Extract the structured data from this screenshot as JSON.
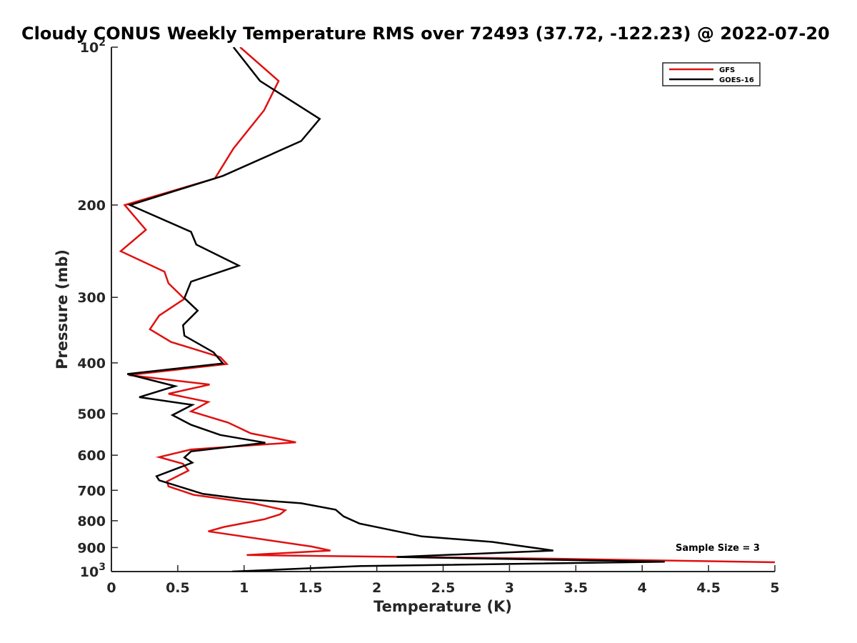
{
  "chart_data": {
    "type": "line",
    "title": "Cloudy CONUS Weekly Temperature RMS over 72493 (37.72, -122.23) @ 2022-07-20",
    "xlabel": "Temperature (K)",
    "ylabel": "Pressure (mb)",
    "xlim": [
      0,
      5
    ],
    "ylim": [
      100,
      1000
    ],
    "y_scale": "log",
    "y_reversed": true,
    "grid": false,
    "legend_position": "top-right",
    "x_ticks": [
      "0",
      "0.5",
      "1",
      "1.5",
      "2",
      "2.5",
      "3",
      "3.5",
      "4",
      "4.5",
      "5"
    ],
    "y_ticks": [
      {
        "value": 100,
        "base": "10",
        "exp": "2"
      },
      {
        "value": 200,
        "label": "200"
      },
      {
        "value": 300,
        "label": "300"
      },
      {
        "value": 400,
        "label": "400"
      },
      {
        "value": 500,
        "label": "500"
      },
      {
        "value": 600,
        "label": "600"
      },
      {
        "value": 700,
        "label": "700"
      },
      {
        "value": 800,
        "label": "800"
      },
      {
        "value": 900,
        "label": "900"
      },
      {
        "value": 1000,
        "base": "10",
        "exp": "3"
      }
    ],
    "annotation": "Sample Size = 3",
    "series": [
      {
        "name": "GFS",
        "color": "#e01010",
        "points": [
          [
            0.97,
            100
          ],
          [
            1.26,
            116
          ],
          [
            1.15,
            132
          ],
          [
            0.92,
            156
          ],
          [
            0.78,
            178
          ],
          [
            0.1,
            200
          ],
          [
            0.26,
            223
          ],
          [
            0.07,
            245
          ],
          [
            0.4,
            268
          ],
          [
            0.43,
            282
          ],
          [
            0.55,
            302
          ],
          [
            0.36,
            325
          ],
          [
            0.29,
            345
          ],
          [
            0.45,
            365
          ],
          [
            0.82,
            390
          ],
          [
            0.87,
            402
          ],
          [
            0.13,
            422
          ],
          [
            0.74,
            440
          ],
          [
            0.43,
            458
          ],
          [
            0.73,
            475
          ],
          [
            0.6,
            495
          ],
          [
            0.88,
            520
          ],
          [
            1.05,
            545
          ],
          [
            1.39,
            567
          ],
          [
            0.6,
            585
          ],
          [
            0.36,
            605
          ],
          [
            0.54,
            623
          ],
          [
            0.58,
            642
          ],
          [
            0.42,
            673
          ],
          [
            0.43,
            688
          ],
          [
            0.62,
            714
          ],
          [
            1.06,
            740
          ],
          [
            1.31,
            764
          ],
          [
            1.27,
            778
          ],
          [
            1.15,
            795
          ],
          [
            0.85,
            822
          ],
          [
            0.73,
            838
          ],
          [
            1.51,
            896
          ],
          [
            1.65,
            912
          ],
          [
            1.02,
            930
          ],
          [
            3.33,
            945
          ],
          [
            5.0,
            960
          ]
        ]
      },
      {
        "name": "GOES-16",
        "color": "#000000",
        "points": [
          [
            0.92,
            100
          ],
          [
            1.12,
            116
          ],
          [
            1.57,
            137
          ],
          [
            1.43,
            151
          ],
          [
            0.84,
            176
          ],
          [
            0.14,
            200
          ],
          [
            0.6,
            225
          ],
          [
            0.64,
            238
          ],
          [
            0.96,
            261
          ],
          [
            0.6,
            280
          ],
          [
            0.55,
            301
          ],
          [
            0.65,
            318
          ],
          [
            0.54,
            339
          ],
          [
            0.55,
            355
          ],
          [
            0.77,
            382
          ],
          [
            0.84,
            401
          ],
          [
            0.12,
            420
          ],
          [
            0.48,
            443
          ],
          [
            0.21,
            465
          ],
          [
            0.61,
            481
          ],
          [
            0.46,
            503
          ],
          [
            0.6,
            525
          ],
          [
            0.82,
            549
          ],
          [
            1.16,
            568
          ],
          [
            0.6,
            590
          ],
          [
            0.55,
            606
          ],
          [
            0.61,
            620
          ],
          [
            0.34,
            658
          ],
          [
            0.36,
            670
          ],
          [
            0.69,
            711
          ],
          [
            0.99,
            727
          ],
          [
            1.43,
            741
          ],
          [
            1.69,
            762
          ],
          [
            1.75,
            785
          ],
          [
            1.87,
            810
          ],
          [
            2.34,
            857
          ],
          [
            2.87,
            878
          ],
          [
            3.33,
            912
          ],
          [
            2.15,
            938
          ],
          [
            4.17,
            958
          ],
          [
            1.88,
            976
          ],
          [
            0.91,
            1000
          ]
        ]
      }
    ]
  }
}
